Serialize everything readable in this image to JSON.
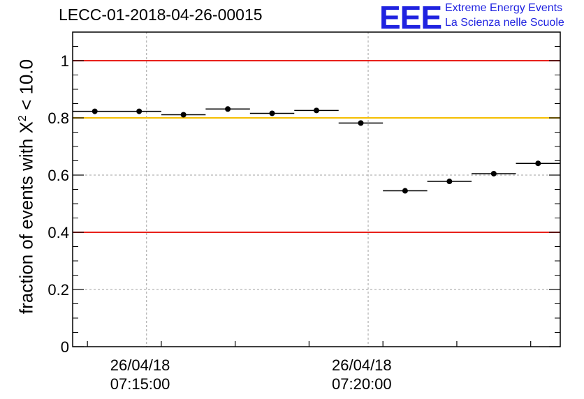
{
  "title": "LECC-01-2018-04-26-00015",
  "logo": {
    "mark": "EEE",
    "line1": "Extreme Energy Events",
    "line2": "La Scienza nelle Scuole"
  },
  "colors": {
    "red_line": "#e8201a",
    "orange_line": "#f5be00",
    "marker": "#000000",
    "logo": "#1f22e0"
  },
  "chart_data": {
    "type": "scatter",
    "ylabel_prefix": "fraction of events with X",
    "ylabel_sup": "2",
    "ylabel_suffix": " < 10.0",
    "ylim": [
      0,
      1.1
    ],
    "yticks": [
      0,
      0.2,
      0.4,
      0.6,
      0.8,
      1
    ],
    "ytick_labels": [
      "0",
      "0.2",
      "0.4",
      "0.6",
      "0.8",
      "1"
    ],
    "xlim": [
      "07:13:20",
      "07:24:20"
    ],
    "xticks": [
      {
        "time": "07:15:00",
        "date": "26/04/18"
      },
      {
        "time": "07:20:00",
        "date": "26/04/18"
      }
    ],
    "reference_lines": [
      {
        "y": 1.0,
        "color": "red"
      },
      {
        "y": 0.8,
        "color": "orange"
      },
      {
        "y": 0.4,
        "color": "red"
      }
    ],
    "bin_width_seconds": 60,
    "points": [
      {
        "x": "07:13:50",
        "y": 0.823
      },
      {
        "x": "07:14:50",
        "y": 0.823
      },
      {
        "x": "07:15:50",
        "y": 0.811
      },
      {
        "x": "07:16:50",
        "y": 0.831
      },
      {
        "x": "07:17:50",
        "y": 0.816
      },
      {
        "x": "07:18:50",
        "y": 0.826
      },
      {
        "x": "07:19:50",
        "y": 0.782
      },
      {
        "x": "07:20:50",
        "y": 0.545
      },
      {
        "x": "07:21:50",
        "y": 0.578
      },
      {
        "x": "07:22:50",
        "y": 0.605
      },
      {
        "x": "07:23:50",
        "y": 0.641
      }
    ],
    "grid": true
  }
}
